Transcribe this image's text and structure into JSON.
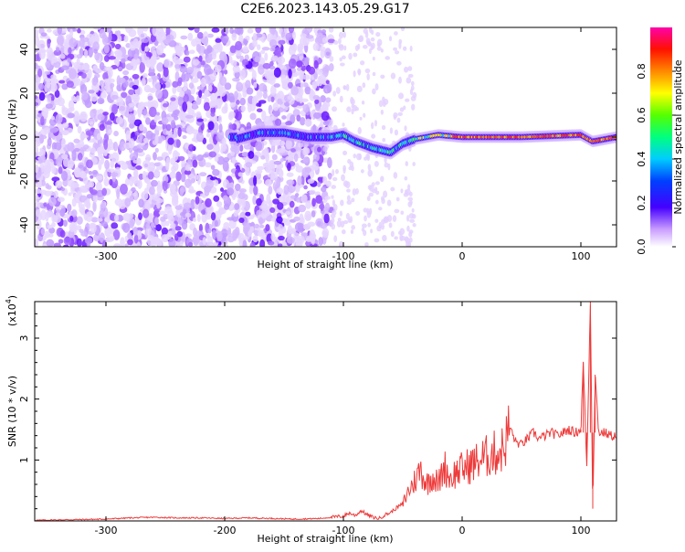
{
  "title": "C2E6.2023.143.05.29.G17",
  "chart_data": [
    {
      "type": "heatmap",
      "title": "C2E6.2023.143.05.29.G17",
      "xlabel": "Height of straight line (km)",
      "ylabel": "Frequency (Hz)",
      "xlim": [
        -360,
        130
      ],
      "ylim": [
        -50,
        50
      ],
      "x_ticks": [
        -300,
        -200,
        -100,
        0,
        100
      ],
      "y_ticks": [
        -40,
        -20,
        0,
        20,
        40
      ],
      "colorbar": {
        "label": "Normalized spectral amplitude",
        "range": [
          0,
          1
        ],
        "ticks": [
          "0.0",
          "0.2",
          "0.4",
          "0.6",
          "0.8"
        ]
      },
      "ridge": [
        {
          "x": -190,
          "y": -1
        },
        {
          "x": -170,
          "y": 2
        },
        {
          "x": -150,
          "y": 2
        },
        {
          "x": -130,
          "y": 0
        },
        {
          "x": -110,
          "y": 0
        },
        {
          "x": -100,
          "y": 1
        },
        {
          "x": -90,
          "y": -2
        },
        {
          "x": -75,
          "y": -5
        },
        {
          "x": -60,
          "y": -7
        },
        {
          "x": -50,
          "y": -3
        },
        {
          "x": -40,
          "y": -1
        },
        {
          "x": -20,
          "y": 1
        },
        {
          "x": 0,
          "y": 0
        },
        {
          "x": 50,
          "y": 0
        },
        {
          "x": 100,
          "y": 1
        },
        {
          "x": 110,
          "y": -2
        },
        {
          "x": 130,
          "y": 0
        }
      ]
    },
    {
      "type": "line",
      "xlabel": "Height of straight line (km)",
      "ylabel": "SNR (10 * v/v)",
      "y_multiplier": "(x10",
      "y_multiplier_exp": "4",
      "xlim": [
        -360,
        130
      ],
      "ylim": [
        0,
        3.6
      ],
      "x_ticks": [
        -300,
        -200,
        -100,
        0,
        100
      ],
      "y_ticks": [
        1,
        2,
        3
      ],
      "color": "#ee3a3a",
      "series": [
        {
          "x": [
            -360,
            -330,
            -300,
            -280,
            -260,
            -240,
            -220,
            -200,
            -180,
            -160,
            -140,
            -120,
            -110,
            -100,
            -95,
            -90,
            -85,
            -80,
            -75,
            -70,
            -65,
            -60,
            -55,
            -50,
            -45,
            -40,
            -35,
            -30,
            -25,
            -20,
            -15,
            -10,
            -5,
            0,
            5,
            10,
            15,
            20,
            25,
            30,
            35,
            40,
            45,
            50,
            55,
            60,
            65,
            70,
            75,
            80,
            85,
            90,
            95,
            100,
            102,
            105,
            108,
            110,
            112,
            115,
            120,
            125,
            130
          ],
          "y": [
            0.01,
            0.02,
            0.03,
            0.05,
            0.06,
            0.05,
            0.05,
            0.04,
            0.05,
            0.04,
            0.03,
            0.04,
            0.06,
            0.08,
            0.13,
            0.09,
            0.17,
            0.1,
            0.06,
            0.04,
            0.1,
            0.14,
            0.22,
            0.28,
            0.5,
            0.65,
            0.85,
            0.6,
            0.75,
            0.6,
            0.9,
            0.7,
            0.8,
            0.85,
            0.9,
            0.95,
            1.0,
            1.05,
            1.1,
            1.12,
            1.2,
            1.55,
            1.3,
            1.25,
            1.35,
            1.45,
            1.35,
            1.4,
            1.45,
            1.4,
            1.45,
            1.5,
            1.45,
            1.5,
            2.6,
            0.9,
            3.6,
            0.2,
            2.4,
            1.45,
            1.45,
            1.4,
            1.4
          ]
        }
      ]
    }
  ]
}
